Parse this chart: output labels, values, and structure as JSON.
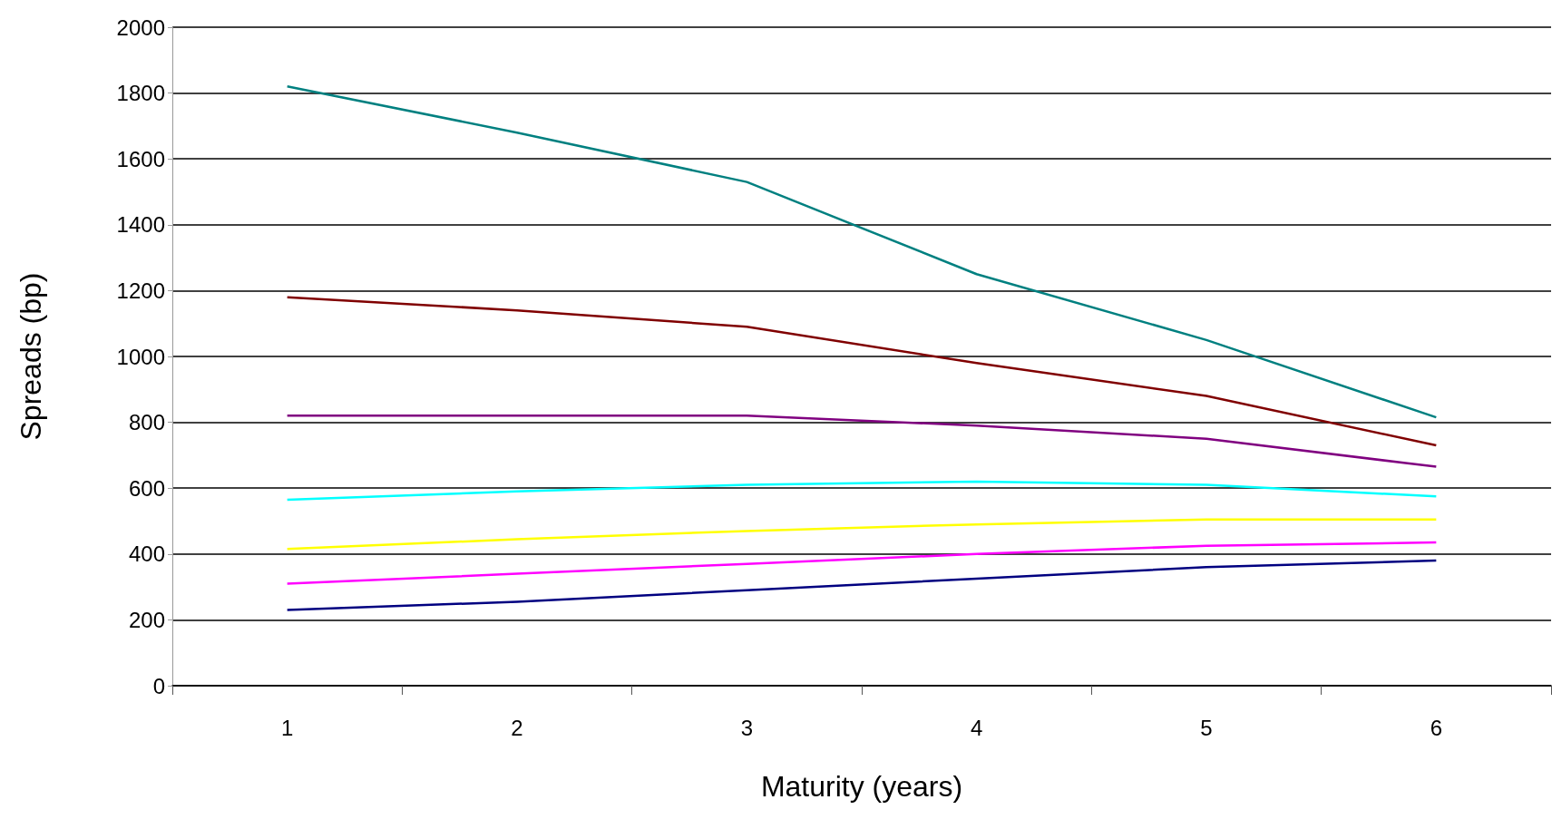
{
  "chart_data": {
    "type": "line",
    "xlabel": "Maturity (years)",
    "ylabel": "Spreads (bp)",
    "categories": [
      "1",
      "2",
      "3",
      "4",
      "5",
      "6"
    ],
    "series": [
      {
        "color": "#008080",
        "values": [
          1820,
          1680,
          1530,
          1250,
          1050,
          815
        ]
      },
      {
        "color": "#800000",
        "values": [
          1180,
          1140,
          1090,
          980,
          880,
          730
        ]
      },
      {
        "color": "#800080",
        "values": [
          820,
          820,
          820,
          790,
          750,
          665
        ]
      },
      {
        "color": "#00ffff",
        "values": [
          565,
          590,
          610,
          620,
          610,
          575
        ]
      },
      {
        "color": "#ffff00",
        "values": [
          415,
          445,
          470,
          490,
          505,
          505
        ]
      },
      {
        "color": "#ff00ff",
        "values": [
          310,
          340,
          370,
          400,
          425,
          435
        ]
      },
      {
        "color": "#000080",
        "values": [
          230,
          255,
          290,
          325,
          360,
          380
        ]
      }
    ],
    "ylim": [
      0,
      2000
    ],
    "yticks": [
      0,
      200,
      400,
      600,
      800,
      1000,
      1200,
      1400,
      1600,
      1800,
      2000
    ],
    "grid": "y",
    "marker": "none",
    "line_style": "solid"
  }
}
